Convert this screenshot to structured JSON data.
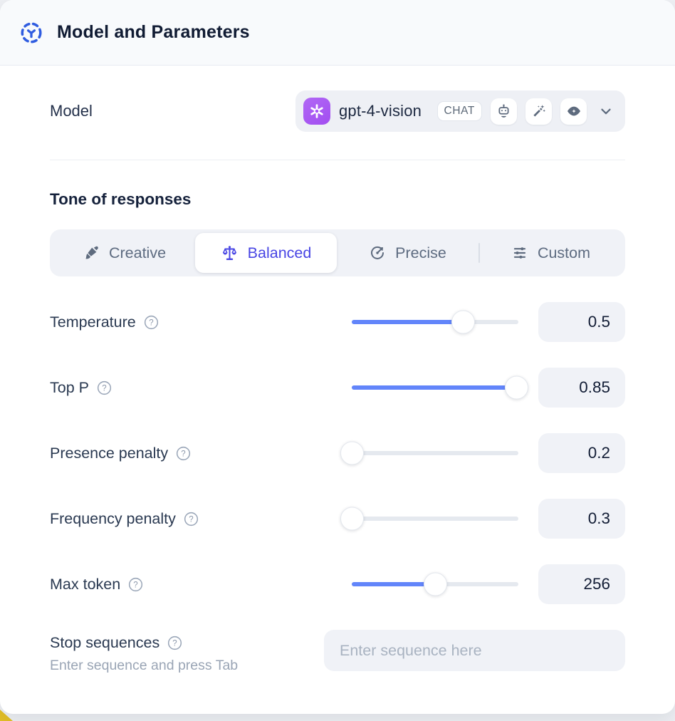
{
  "header": {
    "title": "Model and Parameters"
  },
  "model_section": {
    "label": "Model",
    "selector": {
      "provider_icon": "openai-logo",
      "model_name": "gpt-4-vision",
      "type_badge": "CHAT",
      "capability_icons": [
        "robot",
        "magic-wand",
        "vision-eye"
      ]
    }
  },
  "tone_section": {
    "heading": "Tone of responses",
    "options": [
      {
        "label": "Creative",
        "icon": "paintbrush",
        "selected": false
      },
      {
        "label": "Balanced",
        "icon": "balance-scale",
        "selected": true
      },
      {
        "label": "Precise",
        "icon": "target",
        "selected": false
      },
      {
        "label": "Custom",
        "icon": "sliders",
        "selected": false
      }
    ]
  },
  "parameters": [
    {
      "label": "Temperature",
      "value": "0.5",
      "slider_fill_percent": 67
    },
    {
      "label": "Top P",
      "value": "0.85",
      "slider_fill_percent": 99
    },
    {
      "label": "Presence penalty",
      "value": "0.2",
      "slider_fill_percent": 0
    },
    {
      "label": "Frequency penalty",
      "value": "0.3",
      "slider_fill_percent": 0
    },
    {
      "label": "Max token",
      "value": "256",
      "slider_fill_percent": 50
    }
  ],
  "stop_sequences": {
    "label": "Stop sequences",
    "hint": "Enter sequence and press Tab",
    "input_placeholder": "Enter sequence here"
  },
  "colors": {
    "accent_blue": "#2f5ce0",
    "selected_indigo": "#4845e4",
    "slider_blue": "#6285fa",
    "provider_purple": "#a855f7",
    "corner_yellow": "#e3bf27"
  }
}
